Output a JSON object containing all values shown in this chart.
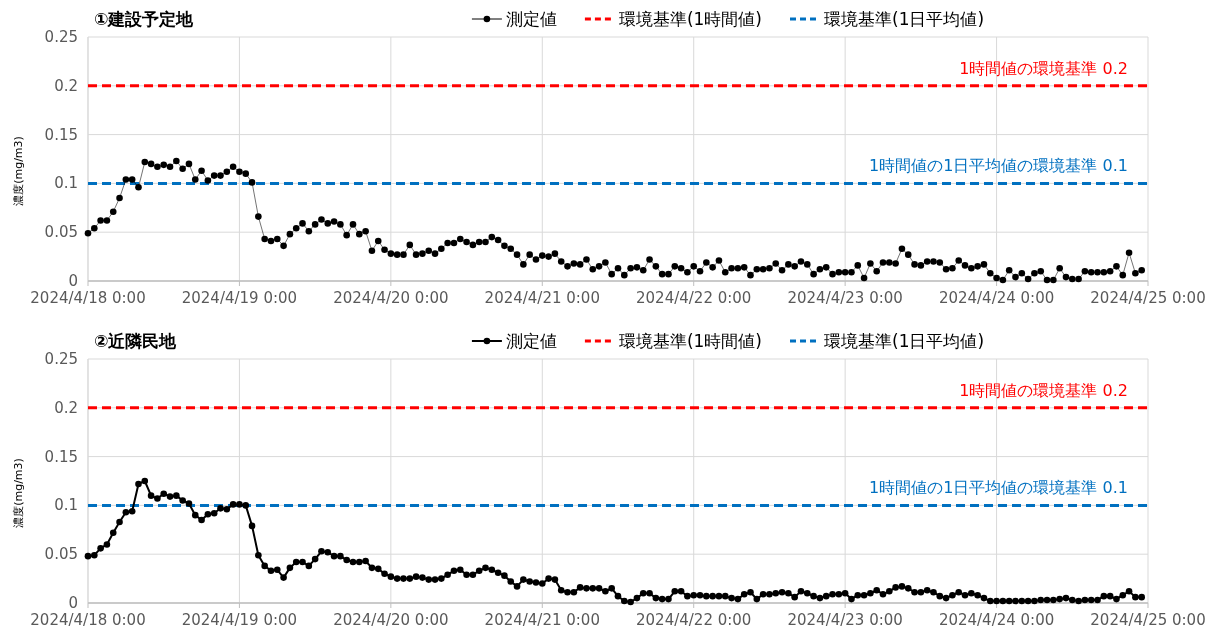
{
  "chart_data": [
    {
      "type": "line",
      "title": "①建設予定地",
      "ylabel": "濃度(mg/m3)",
      "legend": "top",
      "grid": true,
      "marker": "circle",
      "line_style": "solid",
      "xlim": [
        "2024-04-18T00:00",
        "2024-04-25T00:00"
      ],
      "ylim": [
        0,
        0.25
      ],
      "yticks": [
        0,
        0.05,
        0.1,
        0.15,
        0.2,
        0.25
      ],
      "xticks": [
        {
          "value": "2024-04-18T00:00",
          "label": "2024/4/18 0:00"
        },
        {
          "value": "2024-04-19T00:00",
          "label": "2024/4/19 0:00"
        },
        {
          "value": "2024-04-20T00:00",
          "label": "2024/4/20 0:00"
        },
        {
          "value": "2024-04-21T00:00",
          "label": "2024/4/21 0:00"
        },
        {
          "value": "2024-04-22T00:00",
          "label": "2024/4/22 0:00"
        },
        {
          "value": "2024-04-23T00:00",
          "label": "2024/4/23 0:00"
        },
        {
          "value": "2024-04-24T00:00",
          "label": "2024/4/24 0:00"
        },
        {
          "value": "2024-04-25T00:00",
          "label": "2024/4/25 0:00"
        }
      ],
      "x": [
        "2024-04-18T00:00",
        "2024-04-18T01:00",
        "2024-04-18T02:00",
        "2024-04-18T03:00",
        "2024-04-18T04:00",
        "2024-04-18T05:00",
        "2024-04-18T06:00",
        "2024-04-18T07:00",
        "2024-04-18T08:00",
        "2024-04-18T09:00",
        "2024-04-18T10:00",
        "2024-04-18T11:00",
        "2024-04-18T12:00",
        "2024-04-18T13:00",
        "2024-04-18T14:00",
        "2024-04-18T15:00",
        "2024-04-18T16:00",
        "2024-04-18T17:00",
        "2024-04-18T18:00",
        "2024-04-18T19:00",
        "2024-04-18T20:00",
        "2024-04-18T21:00",
        "2024-04-18T22:00",
        "2024-04-18T23:00",
        "2024-04-19T00:00",
        "2024-04-19T01:00",
        "2024-04-19T02:00",
        "2024-04-19T03:00",
        "2024-04-19T04:00",
        "2024-04-19T05:00",
        "2024-04-19T06:00",
        "2024-04-19T07:00",
        "2024-04-19T08:00",
        "2024-04-19T09:00",
        "2024-04-19T10:00",
        "2024-04-19T11:00",
        "2024-04-19T12:00",
        "2024-04-19T13:00",
        "2024-04-19T14:00",
        "2024-04-19T15:00",
        "2024-04-19T16:00",
        "2024-04-19T17:00",
        "2024-04-19T18:00",
        "2024-04-19T19:00",
        "2024-04-19T20:00",
        "2024-04-19T21:00",
        "2024-04-19T22:00",
        "2024-04-19T23:00",
        "2024-04-20T00:00",
        "2024-04-20T01:00",
        "2024-04-20T02:00",
        "2024-04-20T03:00",
        "2024-04-20T04:00",
        "2024-04-20T05:00",
        "2024-04-20T06:00",
        "2024-04-20T07:00",
        "2024-04-20T08:00",
        "2024-04-20T09:00",
        "2024-04-20T10:00",
        "2024-04-20T11:00",
        "2024-04-20T12:00",
        "2024-04-20T13:00",
        "2024-04-20T14:00",
        "2024-04-20T15:00",
        "2024-04-20T16:00",
        "2024-04-20T17:00",
        "2024-04-20T18:00",
        "2024-04-20T19:00",
        "2024-04-20T20:00",
        "2024-04-20T21:00",
        "2024-04-20T22:00",
        "2024-04-20T23:00",
        "2024-04-21T00:00",
        "2024-04-21T01:00",
        "2024-04-21T02:00",
        "2024-04-21T03:00",
        "2024-04-21T04:00",
        "2024-04-21T05:00",
        "2024-04-21T06:00",
        "2024-04-21T07:00",
        "2024-04-21T08:00",
        "2024-04-21T09:00",
        "2024-04-21T10:00",
        "2024-04-21T11:00",
        "2024-04-21T12:00",
        "2024-04-21T13:00",
        "2024-04-21T14:00",
        "2024-04-21T15:00",
        "2024-04-21T16:00",
        "2024-04-21T17:00",
        "2024-04-21T18:00",
        "2024-04-21T19:00",
        "2024-04-21T20:00",
        "2024-04-21T21:00",
        "2024-04-21T22:00",
        "2024-04-21T23:00",
        "2024-04-22T00:00",
        "2024-04-22T01:00",
        "2024-04-22T02:00",
        "2024-04-22T03:00",
        "2024-04-22T04:00",
        "2024-04-22T05:00",
        "2024-04-22T06:00",
        "2024-04-22T07:00",
        "2024-04-22T08:00",
        "2024-04-22T09:00",
        "2024-04-22T10:00",
        "2024-04-22T11:00",
        "2024-04-22T12:00",
        "2024-04-22T13:00",
        "2024-04-22T14:00",
        "2024-04-22T15:00",
        "2024-04-22T16:00",
        "2024-04-22T17:00",
        "2024-04-22T18:00",
        "2024-04-22T19:00",
        "2024-04-22T20:00",
        "2024-04-22T21:00",
        "2024-04-22T22:00",
        "2024-04-22T23:00",
        "2024-04-23T00:00",
        "2024-04-23T01:00",
        "2024-04-23T02:00",
        "2024-04-23T03:00",
        "2024-04-23T04:00",
        "2024-04-23T05:00",
        "2024-04-23T06:00",
        "2024-04-23T07:00",
        "2024-04-23T08:00",
        "2024-04-23T09:00",
        "2024-04-23T10:00",
        "2024-04-23T11:00",
        "2024-04-23T12:00",
        "2024-04-23T13:00",
        "2024-04-23T14:00",
        "2024-04-23T15:00",
        "2024-04-23T16:00",
        "2024-04-23T17:00",
        "2024-04-23T18:00",
        "2024-04-23T19:00",
        "2024-04-23T20:00",
        "2024-04-23T21:00",
        "2024-04-23T22:00",
        "2024-04-23T23:00",
        "2024-04-24T00:00",
        "2024-04-24T01:00",
        "2024-04-24T02:00",
        "2024-04-24T03:00",
        "2024-04-24T04:00",
        "2024-04-24T05:00",
        "2024-04-24T06:00",
        "2024-04-24T07:00",
        "2024-04-24T08:00",
        "2024-04-24T09:00",
        "2024-04-24T10:00",
        "2024-04-24T11:00",
        "2024-04-24T12:00",
        "2024-04-24T13:00",
        "2024-04-24T14:00",
        "2024-04-24T15:00",
        "2024-04-24T16:00",
        "2024-04-24T17:00",
        "2024-04-24T18:00",
        "2024-04-24T19:00",
        "2024-04-24T20:00",
        "2024-04-24T21:00",
        "2024-04-24T22:00",
        "2024-04-24T23:00"
      ],
      "series": [
        {
          "name": "測定値",
          "color": "#000000",
          "values": [
            0.049,
            0.054,
            0.062,
            0.062,
            0.071,
            0.085,
            0.104,
            0.104,
            0.096,
            0.122,
            0.12,
            0.117,
            0.119,
            0.117,
            0.123,
            0.115,
            0.12,
            0.104,
            0.113,
            0.103,
            0.108,
            0.108,
            0.112,
            0.117,
            0.112,
            0.11,
            0.101,
            0.066,
            0.043,
            0.041,
            0.043,
            0.036,
            0.048,
            0.054,
            0.059,
            0.051,
            0.058,
            0.063,
            0.059,
            0.061,
            0.058,
            0.047,
            0.058,
            0.048,
            0.051,
            0.031,
            0.041,
            0.032,
            0.028,
            0.027,
            0.027,
            0.037,
            0.027,
            0.028,
            0.031,
            0.028,
            0.033,
            0.039,
            0.039,
            0.043,
            0.04,
            0.037,
            0.04,
            0.04,
            0.045,
            0.042,
            0.036,
            0.033,
            0.027,
            0.017,
            0.027,
            0.022,
            0.026,
            0.025,
            0.028,
            0.02,
            0.015,
            0.018,
            0.017,
            0.022,
            0.012,
            0.015,
            0.019,
            0.007,
            0.013,
            0.006,
            0.013,
            0.014,
            0.011,
            0.022,
            0.015,
            0.007,
            0.007,
            0.015,
            0.013,
            0.009,
            0.015,
            0.01,
            0.019,
            0.014,
            0.021,
            0.009,
            0.013,
            0.013,
            0.014,
            0.006,
            0.012,
            0.012,
            0.013,
            0.018,
            0.011,
            0.017,
            0.015,
            0.02,
            0.017,
            0.007,
            0.012,
            0.014,
            0.007,
            0.009,
            0.009,
            0.009,
            0.016,
            0.003,
            0.018,
            0.01,
            0.019,
            0.019,
            0.018,
            0.033,
            0.027,
            0.017,
            0.016,
            0.02,
            0.02,
            0.019,
            0.012,
            0.013,
            0.021,
            0.016,
            0.013,
            0.015,
            0.017,
            0.008,
            0.003,
            0.001,
            0.011,
            0.004,
            0.008,
            0.002,
            0.008,
            0.01,
            0.001,
            0.001,
            0.013,
            0.004,
            0.002,
            0.002,
            0.01,
            0.009,
            0.009,
            0.009,
            0.01,
            0.015,
            0.006,
            0.029,
            0.008,
            0.011
          ]
        }
      ],
      "ref_lines": [
        {
          "axis": "y",
          "value": 0.2,
          "label": "環境基準(1時間値)",
          "color": "#ff0000",
          "line_style": "dashed"
        },
        {
          "axis": "y",
          "value": 0.1,
          "label": "環境基準(1日平均値)",
          "color": "#0070c0",
          "line_style": "dashed"
        }
      ],
      "annotations": [
        {
          "text": "1時間値の環境基準  0.2",
          "x": "2024-04-25T00:00",
          "y": 0.2
        },
        {
          "text": "1時間値の1日平均値の環境基準  0.1",
          "x": "2024-04-25T00:00",
          "y": 0.1
        }
      ]
    },
    {
      "type": "line",
      "title": "②近隣民地",
      "ylabel": "濃度(mg/m3)",
      "legend": "top",
      "grid": true,
      "marker": "circle",
      "line_style": "solid",
      "xlim": [
        "2024-04-18T00:00",
        "2024-04-25T00:00"
      ],
      "ylim": [
        0,
        0.25
      ],
      "yticks": [
        0,
        0.05,
        0.1,
        0.15,
        0.2,
        0.25
      ],
      "xticks": [
        {
          "value": "2024-04-18T00:00",
          "label": "2024/4/18 0:00"
        },
        {
          "value": "2024-04-19T00:00",
          "label": "2024/4/19 0:00"
        },
        {
          "value": "2024-04-20T00:00",
          "label": "2024/4/20 0:00"
        },
        {
          "value": "2024-04-21T00:00",
          "label": "2024/4/21 0:00"
        },
        {
          "value": "2024-04-22T00:00",
          "label": "2024/4/22 0:00"
        },
        {
          "value": "2024-04-23T00:00",
          "label": "2024/4/23 0:00"
        },
        {
          "value": "2024-04-24T00:00",
          "label": "2024/4/24 0:00"
        },
        {
          "value": "2024-04-25T00:00",
          "label": "2024/4/25 0:00"
        }
      ],
      "x": [
        "2024-04-18T00:00",
        "2024-04-18T01:00",
        "2024-04-18T02:00",
        "2024-04-18T03:00",
        "2024-04-18T04:00",
        "2024-04-18T05:00",
        "2024-04-18T06:00",
        "2024-04-18T07:00",
        "2024-04-18T08:00",
        "2024-04-18T09:00",
        "2024-04-18T10:00",
        "2024-04-18T11:00",
        "2024-04-18T12:00",
        "2024-04-18T13:00",
        "2024-04-18T14:00",
        "2024-04-18T15:00",
        "2024-04-18T16:00",
        "2024-04-18T17:00",
        "2024-04-18T18:00",
        "2024-04-18T19:00",
        "2024-04-18T20:00",
        "2024-04-18T21:00",
        "2024-04-18T22:00",
        "2024-04-18T23:00",
        "2024-04-19T00:00",
        "2024-04-19T01:00",
        "2024-04-19T02:00",
        "2024-04-19T03:00",
        "2024-04-19T04:00",
        "2024-04-19T05:00",
        "2024-04-19T06:00",
        "2024-04-19T07:00",
        "2024-04-19T08:00",
        "2024-04-19T09:00",
        "2024-04-19T10:00",
        "2024-04-19T11:00",
        "2024-04-19T12:00",
        "2024-04-19T13:00",
        "2024-04-19T14:00",
        "2024-04-19T15:00",
        "2024-04-19T16:00",
        "2024-04-19T17:00",
        "2024-04-19T18:00",
        "2024-04-19T19:00",
        "2024-04-19T20:00",
        "2024-04-19T21:00",
        "2024-04-19T22:00",
        "2024-04-19T23:00",
        "2024-04-20T00:00",
        "2024-04-20T01:00",
        "2024-04-20T02:00",
        "2024-04-20T03:00",
        "2024-04-20T04:00",
        "2024-04-20T05:00",
        "2024-04-20T06:00",
        "2024-04-20T07:00",
        "2024-04-20T08:00",
        "2024-04-20T09:00",
        "2024-04-20T10:00",
        "2024-04-20T11:00",
        "2024-04-20T12:00",
        "2024-04-20T13:00",
        "2024-04-20T14:00",
        "2024-04-20T15:00",
        "2024-04-20T16:00",
        "2024-04-20T17:00",
        "2024-04-20T18:00",
        "2024-04-20T19:00",
        "2024-04-20T20:00",
        "2024-04-20T21:00",
        "2024-04-20T22:00",
        "2024-04-20T23:00",
        "2024-04-21T00:00",
        "2024-04-21T01:00",
        "2024-04-21T02:00",
        "2024-04-21T03:00",
        "2024-04-21T04:00",
        "2024-04-21T05:00",
        "2024-04-21T06:00",
        "2024-04-21T07:00",
        "2024-04-21T08:00",
        "2024-04-21T09:00",
        "2024-04-21T10:00",
        "2024-04-21T11:00",
        "2024-04-21T12:00",
        "2024-04-21T13:00",
        "2024-04-21T14:00",
        "2024-04-21T15:00",
        "2024-04-21T16:00",
        "2024-04-21T17:00",
        "2024-04-21T18:00",
        "2024-04-21T19:00",
        "2024-04-21T20:00",
        "2024-04-21T21:00",
        "2024-04-21T22:00",
        "2024-04-21T23:00",
        "2024-04-22T00:00",
        "2024-04-22T01:00",
        "2024-04-22T02:00",
        "2024-04-22T03:00",
        "2024-04-22T04:00",
        "2024-04-22T05:00",
        "2024-04-22T06:00",
        "2024-04-22T07:00",
        "2024-04-22T08:00",
        "2024-04-22T09:00",
        "2024-04-22T10:00",
        "2024-04-22T11:00",
        "2024-04-22T12:00",
        "2024-04-22T13:00",
        "2024-04-22T14:00",
        "2024-04-22T15:00",
        "2024-04-22T16:00",
        "2024-04-22T17:00",
        "2024-04-22T18:00",
        "2024-04-22T19:00",
        "2024-04-22T20:00",
        "2024-04-22T21:00",
        "2024-04-22T22:00",
        "2024-04-22T23:00",
        "2024-04-23T00:00",
        "2024-04-23T01:00",
        "2024-04-23T02:00",
        "2024-04-23T03:00",
        "2024-04-23T04:00",
        "2024-04-23T05:00",
        "2024-04-23T06:00",
        "2024-04-23T07:00",
        "2024-04-23T08:00",
        "2024-04-23T09:00",
        "2024-04-23T10:00",
        "2024-04-23T11:00",
        "2024-04-23T12:00",
        "2024-04-23T13:00",
        "2024-04-23T14:00",
        "2024-04-23T15:00",
        "2024-04-23T16:00",
        "2024-04-23T17:00",
        "2024-04-23T18:00",
        "2024-04-23T19:00",
        "2024-04-23T20:00",
        "2024-04-23T21:00",
        "2024-04-23T22:00",
        "2024-04-23T23:00",
        "2024-04-24T00:00",
        "2024-04-24T01:00",
        "2024-04-24T02:00",
        "2024-04-24T03:00",
        "2024-04-24T04:00",
        "2024-04-24T05:00",
        "2024-04-24T06:00",
        "2024-04-24T07:00",
        "2024-04-24T08:00",
        "2024-04-24T09:00",
        "2024-04-24T10:00",
        "2024-04-24T11:00",
        "2024-04-24T12:00",
        "2024-04-24T13:00",
        "2024-04-24T14:00",
        "2024-04-24T15:00",
        "2024-04-24T16:00",
        "2024-04-24T17:00",
        "2024-04-24T18:00",
        "2024-04-24T19:00",
        "2024-04-24T20:00",
        "2024-04-24T21:00",
        "2024-04-24T22:00",
        "2024-04-24T23:00"
      ],
      "series": [
        {
          "name": "測定値",
          "color": "#000000",
          "values": [
            0.048,
            0.049,
            0.056,
            0.06,
            0.072,
            0.083,
            0.093,
            0.094,
            0.122,
            0.125,
            0.11,
            0.107,
            0.112,
            0.109,
            0.11,
            0.105,
            0.102,
            0.09,
            0.085,
            0.091,
            0.092,
            0.097,
            0.096,
            0.101,
            0.101,
            0.1,
            0.079,
            0.049,
            0.038,
            0.033,
            0.034,
            0.026,
            0.036,
            0.042,
            0.042,
            0.038,
            0.045,
            0.053,
            0.052,
            0.048,
            0.048,
            0.044,
            0.042,
            0.042,
            0.043,
            0.036,
            0.035,
            0.03,
            0.027,
            0.025,
            0.025,
            0.025,
            0.027,
            0.026,
            0.024,
            0.024,
            0.025,
            0.029,
            0.033,
            0.034,
            0.029,
            0.029,
            0.033,
            0.036,
            0.034,
            0.031,
            0.028,
            0.022,
            0.017,
            0.024,
            0.022,
            0.021,
            0.02,
            0.025,
            0.024,
            0.013,
            0.011,
            0.011,
            0.016,
            0.015,
            0.015,
            0.015,
            0.012,
            0.015,
            0.007,
            0.002,
            0.001,
            0.005,
            0.01,
            0.01,
            0.005,
            0.004,
            0.004,
            0.012,
            0.012,
            0.007,
            0.008,
            0.008,
            0.007,
            0.007,
            0.007,
            0.007,
            0.005,
            0.004,
            0.009,
            0.011,
            0.004,
            0.009,
            0.009,
            0.01,
            0.011,
            0.01,
            0.006,
            0.012,
            0.01,
            0.007,
            0.005,
            0.007,
            0.009,
            0.009,
            0.01,
            0.004,
            0.008,
            0.008,
            0.01,
            0.013,
            0.009,
            0.012,
            0.016,
            0.017,
            0.015,
            0.011,
            0.011,
            0.013,
            0.011,
            0.007,
            0.005,
            0.008,
            0.011,
            0.008,
            0.01,
            0.008,
            0.005,
            0.002,
            0.002,
            0.002,
            0.002,
            0.002,
            0.002,
            0.002,
            0.002,
            0.003,
            0.003,
            0.003,
            0.004,
            0.005,
            0.003,
            0.002,
            0.003,
            0.003,
            0.003,
            0.007,
            0.007,
            0.004,
            0.008,
            0.012,
            0.006,
            0.006
          ]
        }
      ],
      "ref_lines": [
        {
          "axis": "y",
          "value": 0.2,
          "label": "環境基準(1時間値)",
          "color": "#ff0000",
          "line_style": "dashed"
        },
        {
          "axis": "y",
          "value": 0.1,
          "label": "環境基準(1日平均値)",
          "color": "#0070c0",
          "line_style": "dashed"
        }
      ],
      "annotations": [
        {
          "text": "1時間値の環境基準  0.2",
          "x": "2024-04-25T00:00",
          "y": 0.2
        },
        {
          "text": "1時間値の1日平均値の環境基準  0.1",
          "x": "2024-04-25T00:00",
          "y": 0.1
        }
      ]
    }
  ]
}
